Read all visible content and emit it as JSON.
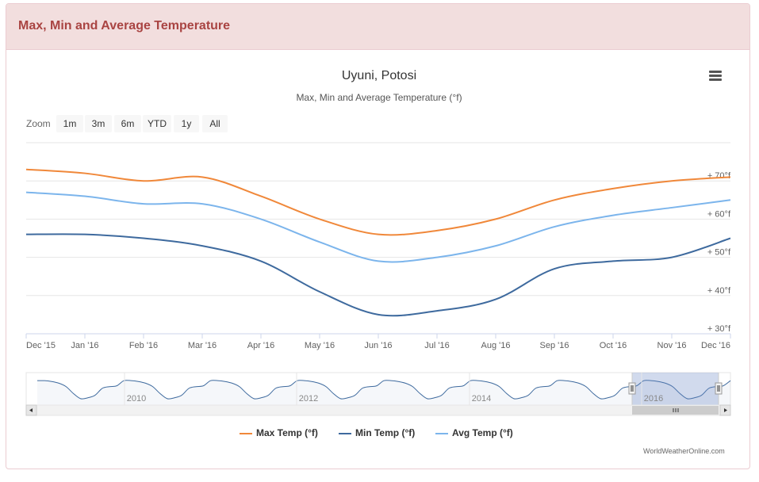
{
  "panel": {
    "title": "Max, Min and Average Temperature"
  },
  "zoom": {
    "label": "Zoom",
    "buttons": [
      {
        "label": "1m",
        "state": "disabled"
      },
      {
        "label": "3m",
        "state": "disabled"
      },
      {
        "label": "6m",
        "state": "normal"
      },
      {
        "label": "YTD",
        "state": "normal"
      },
      {
        "label": "1y",
        "state": "active"
      },
      {
        "label": "All",
        "state": "normal"
      }
    ]
  },
  "credit": "WorldWeatherOnline.com",
  "colors": {
    "max": "#f0883a",
    "min": "#3e6a9e",
    "avg": "#7cb5ec",
    "accent": "#a94442"
  },
  "icons": {
    "menu": "hamburger-menu-icon"
  },
  "chart_data": {
    "type": "line",
    "title": "Uyuni, Potosi",
    "subtitle": "Max, Min and Average Temperature (°f)",
    "x": [
      "Dec '15",
      "Jan '16",
      "Feb '16",
      "Mar '16",
      "Apr '16",
      "May '16",
      "Jun '16",
      "Jul '16",
      "Aug '16",
      "Sep '16",
      "Oct '16",
      "Nov '16",
      "Dec '16"
    ],
    "series": [
      {
        "name": "Max Temp (°f)",
        "values": [
          73,
          72,
          70,
          71,
          66,
          60,
          56,
          57,
          60,
          65,
          68,
          70,
          71
        ]
      },
      {
        "name": "Min Temp (°f)",
        "values": [
          56,
          56,
          55,
          53,
          49,
          41,
          35,
          36,
          39,
          47,
          49,
          50,
          55
        ]
      },
      {
        "name": "Avg Temp (°f)",
        "values": [
          67,
          66,
          64,
          64,
          60,
          54,
          49,
          50,
          53,
          58,
          61,
          63,
          65
        ]
      }
    ],
    "yaxis": {
      "ticks": [
        "+ 30°f",
        "+ 40°f",
        "+ 50°f",
        "+ 60°f",
        "+ 70°f"
      ],
      "tick_values": [
        30,
        40,
        50,
        60,
        70
      ],
      "ylim": [
        30,
        80
      ],
      "position": "right"
    },
    "grid": true,
    "legend": "bottom-center",
    "navigator": {
      "years": [
        "2010",
        "2012",
        "2014",
        "2016"
      ]
    }
  }
}
